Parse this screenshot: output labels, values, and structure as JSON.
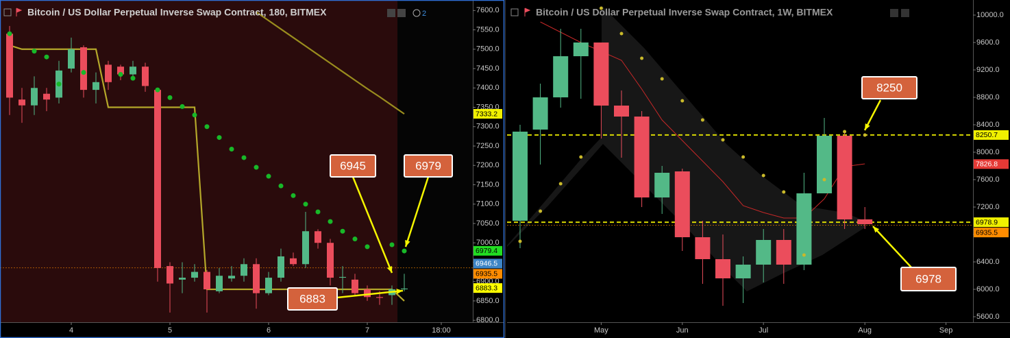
{
  "chart_data": [
    {
      "type": "candlestick",
      "title": "Bitcoin / US Dollar Perpetual Inverse Swap Contract, 180, BITMEX",
      "badge": "2",
      "categories": [
        null,
        null,
        null,
        null,
        null,
        "4",
        null,
        null,
        null,
        null,
        null,
        null,
        null,
        "5",
        null,
        null,
        null,
        null,
        null,
        null,
        null,
        "6",
        null,
        null,
        null,
        null,
        null,
        null,
        null,
        "7",
        null,
        null,
        null,
        null,
        null,
        "18:00"
      ],
      "open": [
        7540,
        7370,
        7355,
        7385,
        7375,
        7450,
        7505,
        7395,
        7460,
        7455,
        7435,
        7455,
        7395,
        6940,
        6905,
        6910,
        6925,
        6875,
        6908,
        6915,
        6945,
        6870,
        6910,
        6960,
        6945,
        7030,
        7000,
        6910,
        6905,
        6880,
        6860,
        6865,
        6880,
        null,
        null,
        null
      ],
      "high": [
        7560,
        7400,
        7430,
        7400,
        7470,
        7530,
        7510,
        7440,
        7470,
        7460,
        7470,
        7465,
        7400,
        6950,
        6950,
        6945,
        6930,
        6935,
        6940,
        6960,
        6960,
        6925,
        6985,
        6975,
        7080,
        7035,
        7010,
        6940,
        6920,
        6890,
        6875,
        6890,
        6920,
        null,
        null,
        null
      ],
      "low": [
        7330,
        7310,
        7330,
        7340,
        7360,
        7440,
        7375,
        7360,
        7395,
        7420,
        7420,
        7390,
        6900,
        6820,
        6870,
        6900,
        6820,
        6870,
        6900,
        6900,
        6830,
        6865,
        6900,
        6940,
        6935,
        6985,
        6890,
        6870,
        6865,
        6850,
        6840,
        6840,
        6875,
        null,
        null,
        null
      ],
      "close": [
        7375,
        7355,
        7400,
        7370,
        7445,
        7500,
        7395,
        7415,
        7415,
        7435,
        7455,
        7405,
        6935,
        6895,
        6910,
        6925,
        6880,
        6915,
        6915,
        6945,
        6870,
        6910,
        6965,
        6945,
        7030,
        7000,
        6910,
        6912,
        6870,
        6860,
        6858,
        6880,
        6882,
        null,
        null,
        null
      ],
      "up_color": "#53b987",
      "down_color": "#eb4d5c",
      "overlays": [
        {
          "style": "line",
          "color": "#b5a82a",
          "values": [
            7510,
            7500,
            7500,
            7500,
            7500,
            7500,
            7500,
            7500,
            7350,
            7350,
            7350,
            7350,
            7350,
            7350,
            7350,
            7350,
            6880,
            6880,
            6880,
            6880,
            6880,
            6880,
            6880,
            6880,
            6880,
            6880,
            6880,
            6880,
            6880,
            6880,
            6880,
            6880,
            6850,
            null,
            null,
            null
          ]
        },
        {
          "style": "line",
          "color": "#9a8d1e",
          "values": [
            null,
            null,
            null,
            null,
            null,
            null,
            null,
            null,
            null,
            null,
            null,
            null,
            null,
            null,
            null,
            null,
            null,
            null,
            null,
            null,
            7596,
            7574,
            7552,
            7530,
            7508,
            7486,
            7464,
            7442,
            7420,
            7398,
            7377,
            7355,
            7333,
            null,
            null,
            null
          ]
        },
        {
          "style": "dots",
          "color": "#18b828",
          "values": [
            7540,
            null,
            7495,
            7480,
            7410,
            null,
            7440,
            null,
            null,
            7435,
            7425,
            null,
            7395,
            7375,
            7352,
            7330,
            7300,
            7272,
            7242,
            7220,
            7195,
            7172,
            7147,
            7122,
            7100,
            7080,
            7055,
            7030,
            7010,
            6990,
            null,
            6995,
            6979,
            null,
            null,
            null
          ]
        }
      ],
      "price_labels": [
        {
          "value": 7333.2,
          "color": "#f0f000",
          "line": "none"
        },
        {
          "value": 6979.4,
          "color": "#22dd22",
          "line": "none"
        },
        {
          "value": 6946.5,
          "color": "#3d85c6",
          "line": "none"
        },
        {
          "value": 6935.5,
          "color": "#ff8c00",
          "line": "dotted"
        },
        {
          "value": 6883.3,
          "color": "#ffff00",
          "line": "none"
        }
      ],
      "annotations": [
        "6945",
        "6979",
        "6883"
      ],
      "ylim": [
        6795,
        7620
      ],
      "yticks": [
        {
          "value": 6800,
          "label": "6800.0"
        },
        {
          "value": 6850,
          "label": "6850.0"
        },
        {
          "value": 6900,
          "label": "6900.0"
        },
        {
          "value": 6950,
          "label": "6950.0"
        },
        {
          "value": 7000,
          "label": "7000.0"
        },
        {
          "value": 7050,
          "label": "7050.0"
        },
        {
          "value": 7100,
          "label": "7100.0"
        },
        {
          "value": 7150,
          "label": "7150.0"
        },
        {
          "value": 7200,
          "label": "7200.0"
        },
        {
          "value": 7250,
          "label": "7250.0"
        },
        {
          "value": 7300,
          "label": "7300.0"
        },
        {
          "value": 7350,
          "label": "7350.0"
        },
        {
          "value": 7400,
          "label": "7400.0"
        },
        {
          "value": 7450,
          "label": "7450.0"
        },
        {
          "value": 7500,
          "label": "7500.0"
        },
        {
          "value": 7550,
          "label": "7550.0"
        },
        {
          "value": 7600,
          "label": "7600.0"
        }
      ]
    },
    {
      "type": "candlestick",
      "title": "Bitcoin / US Dollar Perpetual Inverse Swap Contract, 1W, BITMEX",
      "categories": [
        null,
        null,
        null,
        null,
        "May",
        null,
        null,
        null,
        "Jun",
        null,
        null,
        null,
        "Jul",
        null,
        null,
        null,
        null,
        "Aug",
        null,
        null,
        null,
        "Sep"
      ],
      "open": [
        7000,
        8330,
        8800,
        9400,
        9600,
        8680,
        8520,
        7340,
        7720,
        6760,
        6440,
        6160,
        6360,
        6720,
        6360,
        7400,
        8240,
        7020,
        null,
        null,
        null,
        null
      ],
      "high": [
        8400,
        9000,
        9800,
        9800,
        9600,
        8900,
        8600,
        7800,
        7760,
        7000,
        6800,
        6480,
        6880,
        6880,
        7700,
        8500,
        8280,
        7200,
        null,
        null,
        null,
        null
      ],
      "low": [
        6600,
        7820,
        8650,
        8780,
        8200,
        7920,
        7200,
        7100,
        6560,
        6080,
        5760,
        5800,
        6100,
        6080,
        6280,
        7400,
        6880,
        6880,
        null,
        null,
        null,
        null
      ],
      "close": [
        8300,
        8800,
        9400,
        9600,
        8680,
        8520,
        7340,
        7700,
        6760,
        6440,
        6160,
        6360,
        6720,
        6360,
        7400,
        8240,
        7020,
        6950,
        null,
        null,
        null,
        null
      ],
      "up_color": "#53b987",
      "down_color": "#eb4d5c",
      "overlays": [
        {
          "style": "line",
          "color": "#c62828",
          "values": [
            null,
            9900,
            9750,
            9600,
            9470,
            9340,
            8920,
            8470,
            8170,
            7870,
            7570,
            7220,
            7120,
            7040,
            7040,
            7320,
            7790,
            7830,
            null,
            null,
            null,
            null
          ]
        },
        {
          "style": "dots",
          "color": "#c9b92a",
          "values": [
            6700,
            7140,
            7540,
            7930,
            10100,
            9730,
            9370,
            9070,
            8750,
            8470,
            8180,
            7930,
            7660,
            7420,
            6500,
            7600,
            8300,
            8250,
            null,
            null,
            null,
            null
          ]
        }
      ],
      "price_labels": [
        {
          "value": 8250.7,
          "color": "#f0f000",
          "line": "dashed"
        },
        {
          "value": 7826.8,
          "color": "#e53935",
          "line": "none"
        },
        {
          "value": 6978.9,
          "color": "#f0f000",
          "line": "dashed"
        },
        {
          "value": 6935.5,
          "color": "#ff8c00",
          "line": "dotted"
        }
      ],
      "annotations": [
        "8250",
        "6978"
      ],
      "ylim": [
        5520,
        10180
      ],
      "yticks": [
        {
          "value": 5600,
          "label": "5600.0"
        },
        {
          "value": 6000,
          "label": "6000.0"
        },
        {
          "value": 6400,
          "label": "6400.0"
        },
        {
          "value": 6800,
          "label": "6800.0"
        },
        {
          "value": 7200,
          "label": "7200.0"
        },
        {
          "value": 7600,
          "label": "7600.0"
        },
        {
          "value": 8000,
          "label": "8000.0"
        },
        {
          "value": 8400,
          "label": "8400.0"
        },
        {
          "value": 8800,
          "label": "8800.0"
        },
        {
          "value": 9200,
          "label": "9200.0"
        },
        {
          "value": 9600,
          "label": "9600.0"
        },
        {
          "value": 10000,
          "label": "10000.0"
        }
      ]
    }
  ]
}
